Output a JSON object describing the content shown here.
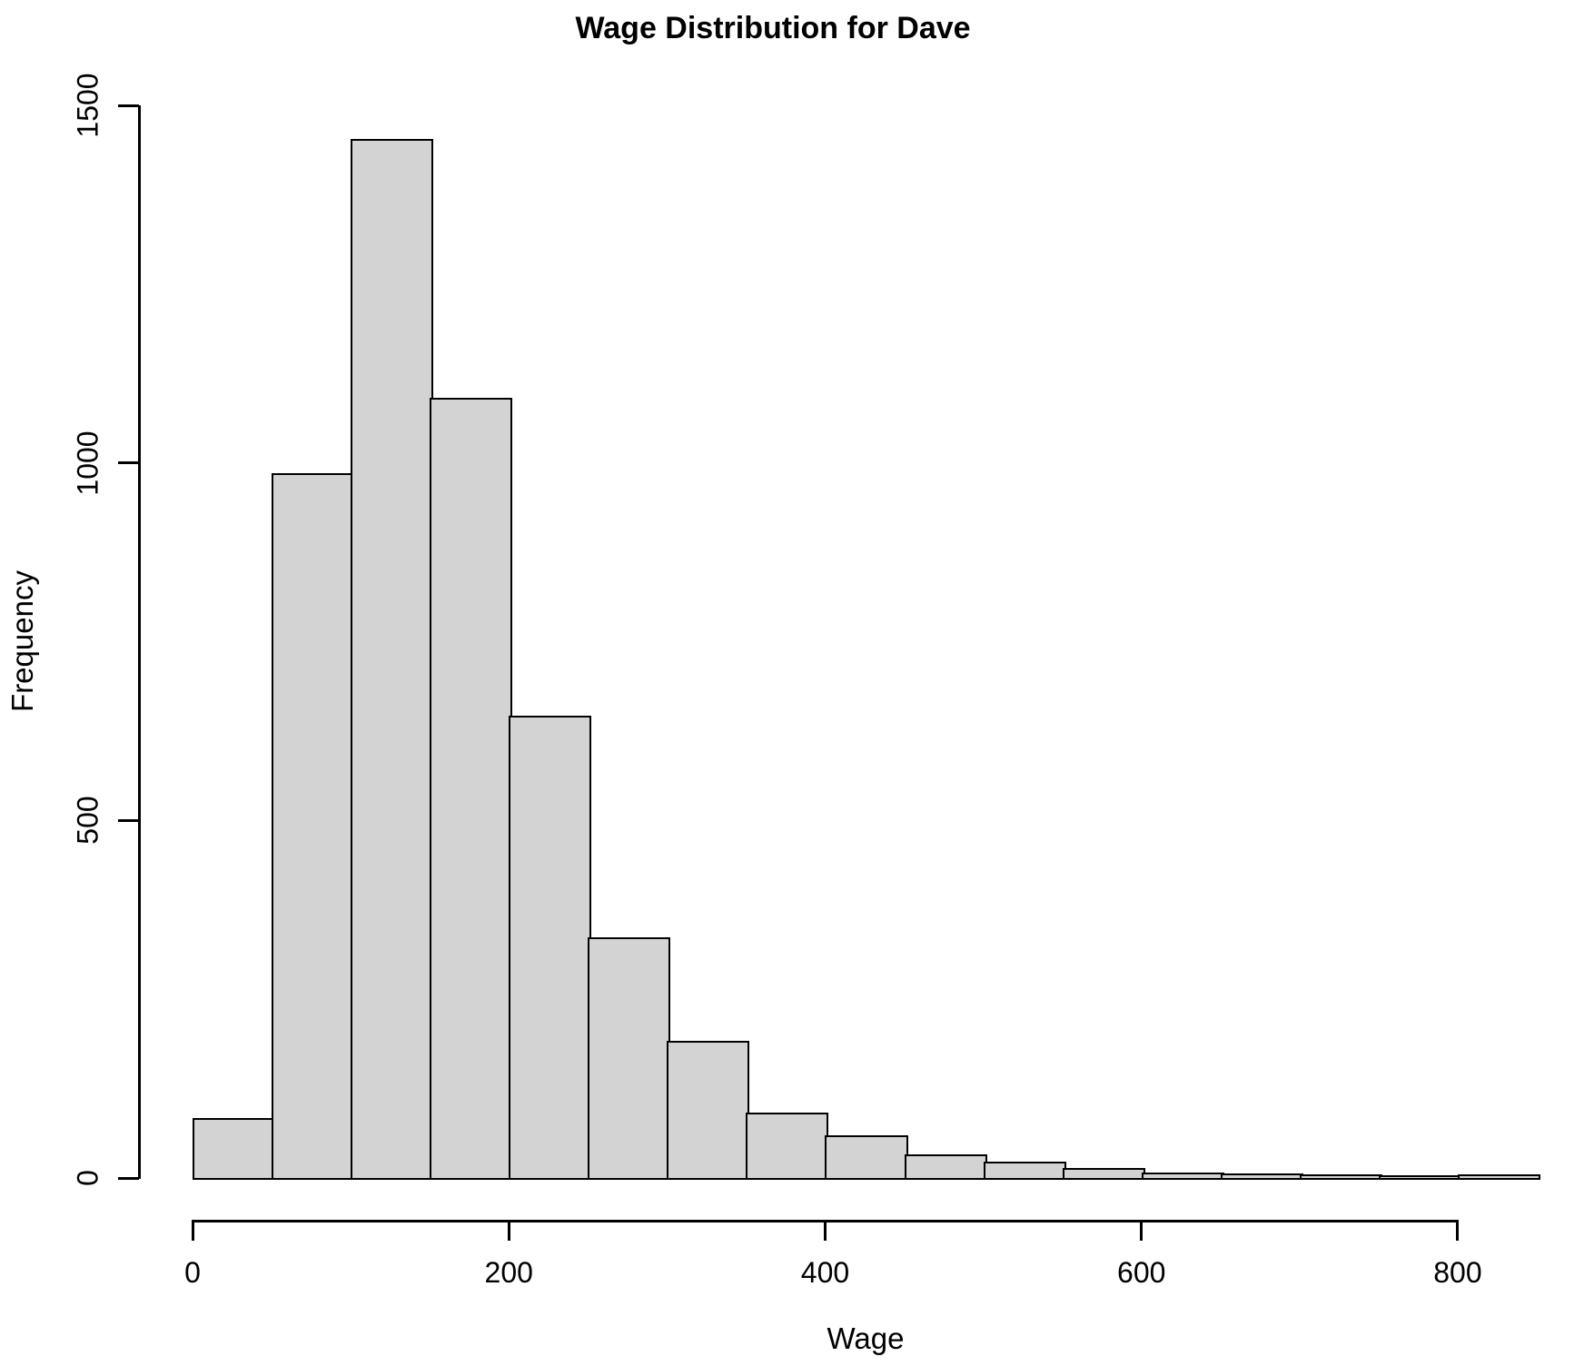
{
  "chart_data": {
    "type": "bar",
    "subtype": "histogram",
    "title": "Wage Distribution for Dave",
    "xlabel": "Wage",
    "ylabel": "Frequency",
    "xlim": [
      0,
      850
    ],
    "ylim": [
      0,
      1500
    ],
    "x_ticks": [
      0,
      200,
      400,
      600,
      800
    ],
    "y_ticks": [
      0,
      500,
      1000,
      1500
    ],
    "grid": false,
    "legend": null,
    "bar_fill": "#d3d3d3",
    "bar_border": "#000000",
    "background": "#ffffff",
    "bin_width": 50,
    "bins": [
      {
        "start": 0,
        "end": 50,
        "count": 81
      },
      {
        "start": 50,
        "end": 100,
        "count": 983
      },
      {
        "start": 100,
        "end": 150,
        "count": 1450
      },
      {
        "start": 150,
        "end": 200,
        "count": 1089
      },
      {
        "start": 200,
        "end": 250,
        "count": 644
      },
      {
        "start": 250,
        "end": 300,
        "count": 334
      },
      {
        "start": 300,
        "end": 350,
        "count": 189
      },
      {
        "start": 350,
        "end": 400,
        "count": 89
      },
      {
        "start": 400,
        "end": 450,
        "count": 57
      },
      {
        "start": 450,
        "end": 500,
        "count": 30
      },
      {
        "start": 500,
        "end": 550,
        "count": 20
      },
      {
        "start": 550,
        "end": 600,
        "count": 11
      },
      {
        "start": 600,
        "end": 650,
        "count": 5
      },
      {
        "start": 650,
        "end": 700,
        "count": 4
      },
      {
        "start": 700,
        "end": 750,
        "count": 3
      },
      {
        "start": 750,
        "end": 800,
        "count": 1
      },
      {
        "start": 800,
        "end": 850,
        "count": 2
      }
    ]
  }
}
